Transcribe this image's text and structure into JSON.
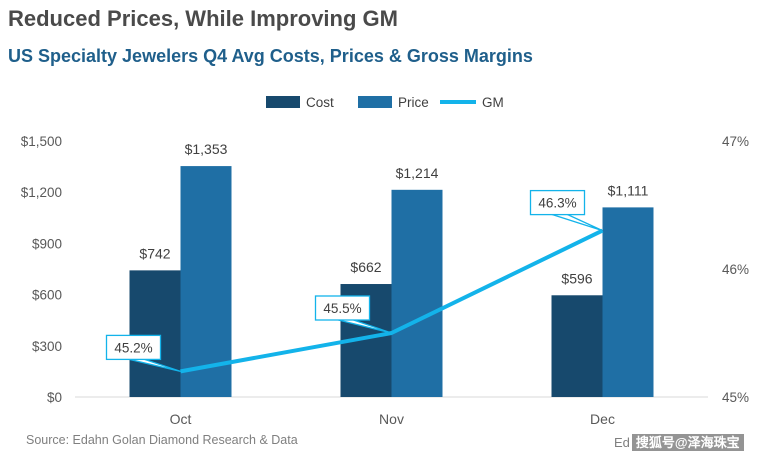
{
  "title": "Reduced Prices, While Improving GM",
  "subtitle": "US Specialty Jewelers Q4 Avg Costs, Prices & Gross Margins",
  "source": "Source: Edahn Golan Diamond Research & Data",
  "watermark": {
    "text": "Ed",
    "badge": "搜狐号@泽海珠宝"
  },
  "colors": {
    "cost": "#17496d",
    "price": "#1f6fa5",
    "gm": "#13b3ea",
    "axis": "#d9d9d9"
  },
  "chart_data": {
    "type": "bar",
    "categories": [
      "Oct",
      "Nov",
      "Dec"
    ],
    "series": [
      {
        "name": "Cost",
        "values": [
          742,
          662,
          596
        ],
        "labels": [
          "$742",
          "$662",
          "$596"
        ]
      },
      {
        "name": "Price",
        "values": [
          1353,
          1214,
          1111
        ],
        "labels": [
          "$1,353",
          "$1,214",
          "$1,111"
        ]
      }
    ],
    "line_series": {
      "name": "GM",
      "values": [
        45.2,
        45.5,
        46.3
      ],
      "labels": [
        "45.2%",
        "45.5%",
        "46.3%"
      ],
      "axis": "right"
    },
    "y_left": {
      "min": 0,
      "max": 1500,
      "ticks": [
        0,
        300,
        600,
        900,
        1200,
        1500
      ],
      "tick_labels": [
        "$0",
        "$300",
        "$600",
        "$900",
        "$1,200",
        "$1,500"
      ]
    },
    "y_right": {
      "min": 45,
      "max": 47,
      "ticks": [
        45,
        46,
        47
      ],
      "tick_labels": [
        "45%",
        "46%",
        "47%"
      ]
    },
    "legend": [
      "Cost",
      "Price",
      "GM"
    ],
    "legend_position": "top-center"
  }
}
